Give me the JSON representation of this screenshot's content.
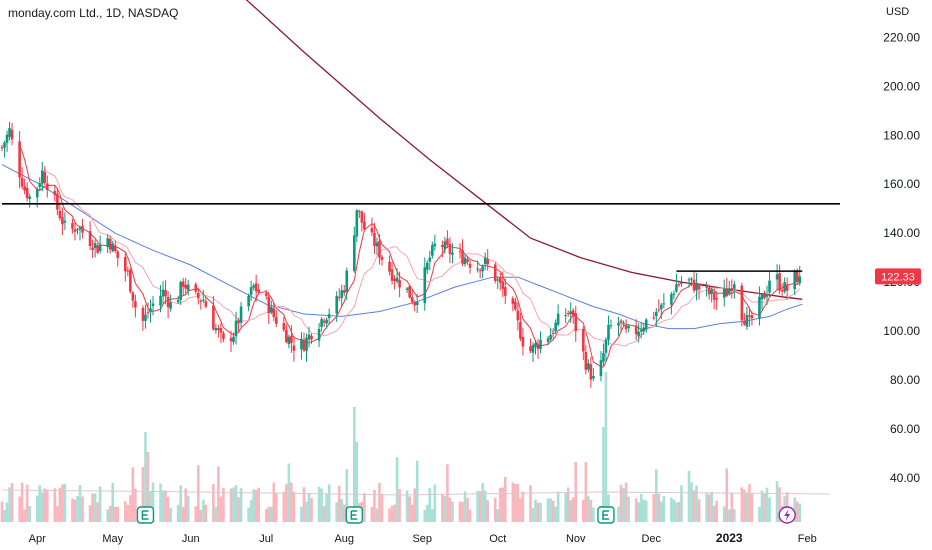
{
  "header": {
    "title": "monday.com Ltd., 1D, NASDAQ",
    "currency": "USD"
  },
  "colors": {
    "up": "#089981",
    "down": "#f23645",
    "volume_up": "#a8dfd6",
    "volume_down": "#f9b7bd",
    "ma_short": "#f23645",
    "ma_mid": "#f7a4b0",
    "ma_blue": "#5b7fe0",
    "ma_long": "#8b1a2b",
    "price_label": "#f23645",
    "hline": "#000000",
    "earnings": "#089981",
    "event": "#9c27b0"
  },
  "chart_data": {
    "type": "candlestick",
    "title": "monday.com Ltd., 1D, NASDAQ",
    "currency": "USD",
    "ylim": [
      22,
      232
    ],
    "y_ticks": [
      "220.00",
      "200.00",
      "180.00",
      "160.00",
      "140.00",
      "120.00",
      "100.00",
      "80.00",
      "60.00",
      "40.00"
    ],
    "x_ticks": [
      {
        "label": "Apr",
        "day": 14
      },
      {
        "label": "May",
        "day": 44
      },
      {
        "label": "Jun",
        "day": 75
      },
      {
        "label": "Jul",
        "day": 105
      },
      {
        "label": "Aug",
        "day": 136
      },
      {
        "label": "Sep",
        "day": 167
      },
      {
        "label": "Oct",
        "day": 197
      },
      {
        "label": "Nov",
        "day": 228
      },
      {
        "label": "Dec",
        "day": 258
      },
      {
        "label": "2023",
        "day": 289,
        "bold": true
      },
      {
        "label": "Feb",
        "day": 320
      }
    ],
    "last_price": "122.33",
    "horizontal_lines": [
      {
        "price": 152,
        "from_day": 0,
        "to_day": 333
      },
      {
        "price": 124.5,
        "from_day": 268,
        "to_day": 318
      }
    ],
    "earnings_days": [
      57,
      140,
      240
    ],
    "event_day": 312,
    "price_path": [
      [
        0,
        175
      ],
      [
        3,
        182
      ],
      [
        6,
        168
      ],
      [
        9,
        158
      ],
      [
        12,
        153
      ],
      [
        16,
        165
      ],
      [
        19,
        158
      ],
      [
        22,
        150
      ],
      [
        26,
        140
      ],
      [
        30,
        143
      ],
      [
        34,
        138
      ],
      [
        38,
        134
      ],
      [
        42,
        138
      ],
      [
        46,
        130
      ],
      [
        50,
        123
      ],
      [
        53,
        110
      ],
      [
        56,
        104
      ],
      [
        60,
        111
      ],
      [
        64,
        116
      ],
      [
        68,
        109
      ],
      [
        72,
        120
      ],
      [
        76,
        114
      ],
      [
        80,
        113
      ],
      [
        84,
        103
      ],
      [
        88,
        95
      ],
      [
        92,
        99
      ],
      [
        96,
        110
      ],
      [
        100,
        118
      ],
      [
        104,
        114
      ],
      [
        108,
        106
      ],
      [
        112,
        100
      ],
      [
        116,
        94
      ],
      [
        120,
        95
      ],
      [
        124,
        101
      ],
      [
        128,
        106
      ],
      [
        132,
        110
      ],
      [
        136,
        118
      ],
      [
        139,
        133
      ],
      [
        141,
        150
      ],
      [
        144,
        142
      ],
      [
        148,
        136
      ],
      [
        152,
        128
      ],
      [
        156,
        122
      ],
      [
        160,
        118
      ],
      [
        164,
        112
      ],
      [
        167,
        120
      ],
      [
        170,
        130
      ],
      [
        173,
        137
      ],
      [
        176,
        134
      ],
      [
        180,
        131
      ],
      [
        184,
        130
      ],
      [
        188,
        126
      ],
      [
        192,
        128
      ],
      [
        196,
        122
      ],
      [
        200,
        115
      ],
      [
        204,
        106
      ],
      [
        207,
        96
      ],
      [
        210,
        92
      ],
      [
        214,
        96
      ],
      [
        218,
        99
      ],
      [
        222,
        106
      ],
      [
        226,
        108
      ],
      [
        229,
        98
      ],
      [
        232,
        87
      ],
      [
        235,
        80
      ],
      [
        238,
        86
      ],
      [
        241,
        100
      ],
      [
        244,
        105
      ],
      [
        248,
        99
      ],
      [
        252,
        100
      ],
      [
        256,
        104
      ],
      [
        260,
        108
      ],
      [
        264,
        111
      ],
      [
        268,
        119
      ],
      [
        272,
        121
      ],
      [
        276,
        118
      ],
      [
        280,
        116
      ],
      [
        284,
        113
      ],
      [
        288,
        116
      ],
      [
        291,
        121
      ],
      [
        294,
        107
      ],
      [
        297,
        103
      ],
      [
        300,
        109
      ],
      [
        304,
        117
      ],
      [
        306,
        126
      ],
      [
        309,
        119
      ],
      [
        312,
        117
      ],
      [
        315,
        122
      ],
      [
        317,
        122.33
      ]
    ],
    "moving_averages": [
      {
        "key": "ma_long",
        "points": [
          [
            0,
            320
          ],
          [
            30,
            295
          ],
          [
            60,
            268
          ],
          [
            90,
            242
          ],
          [
            120,
            214
          ],
          [
            150,
            187
          ],
          [
            170,
            170
          ],
          [
            195,
            150
          ],
          [
            210,
            138
          ],
          [
            230,
            130
          ],
          [
            250,
            124
          ],
          [
            270,
            120
          ],
          [
            290,
            117
          ],
          [
            310,
            114
          ],
          [
            318,
            113
          ]
        ]
      },
      {
        "key": "ma_blue",
        "points": [
          [
            0,
            168
          ],
          [
            15,
            160
          ],
          [
            30,
            150
          ],
          [
            45,
            140
          ],
          [
            60,
            133
          ],
          [
            75,
            127
          ],
          [
            90,
            119
          ],
          [
            105,
            111
          ],
          [
            120,
            107
          ],
          [
            135,
            106
          ],
          [
            150,
            108
          ],
          [
            165,
            112
          ],
          [
            180,
            118
          ],
          [
            195,
            122
          ],
          [
            205,
            122
          ],
          [
            215,
            118
          ],
          [
            225,
            114
          ],
          [
            235,
            110
          ],
          [
            245,
            107
          ],
          [
            255,
            103
          ],
          [
            265,
            101
          ],
          [
            275,
            101
          ],
          [
            285,
            103
          ],
          [
            295,
            104
          ],
          [
            305,
            106
          ],
          [
            312,
            109
          ],
          [
            318,
            111
          ]
        ]
      },
      {
        "key": "ma_short",
        "period": 6
      },
      {
        "key": "ma_mid",
        "period": 14
      }
    ]
  }
}
